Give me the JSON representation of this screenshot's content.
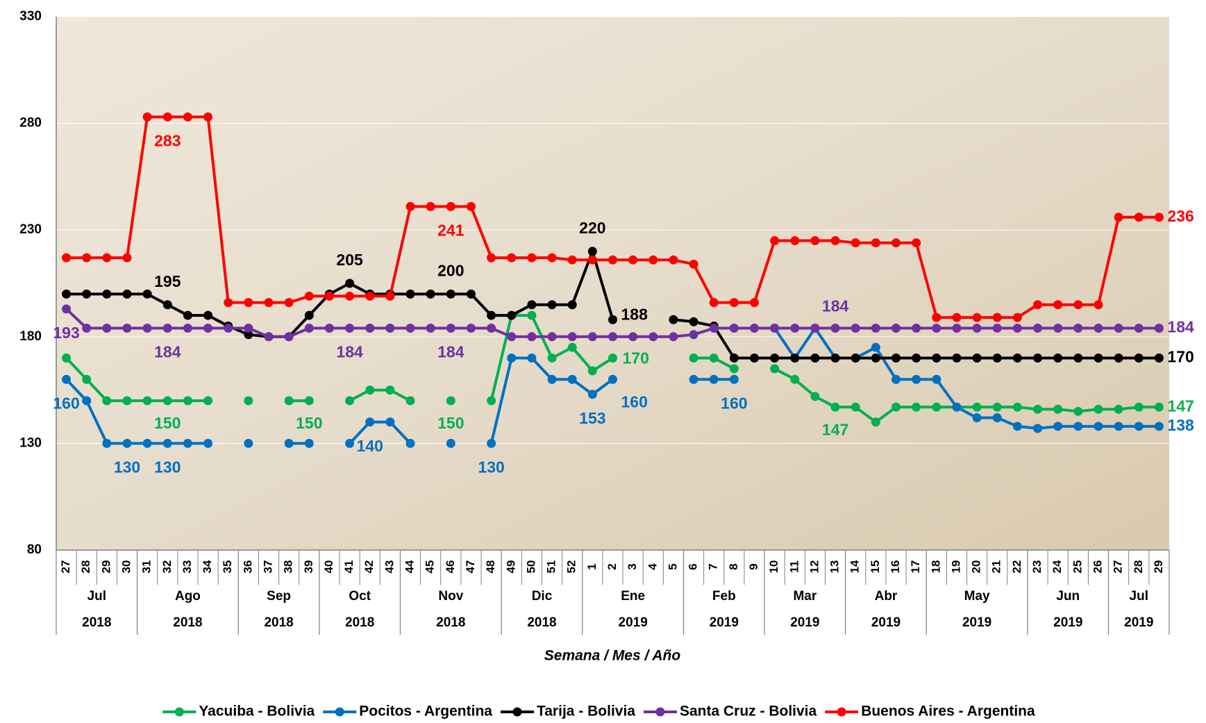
{
  "chart_data": {
    "type": "line",
    "x_label": "Semana / Mes / Año",
    "groups": [
      {
        "month": "Jul",
        "year": "2018",
        "weeks": [
          "27",
          "28",
          "29",
          "30"
        ]
      },
      {
        "month": "Ago",
        "year": "2018",
        "weeks": [
          "31",
          "32",
          "33",
          "34",
          "35"
        ]
      },
      {
        "month": "Sep",
        "year": "2018",
        "weeks": [
          "36",
          "37",
          "38",
          "39"
        ]
      },
      {
        "month": "Oct",
        "year": "2018",
        "weeks": [
          "40",
          "41",
          "42",
          "43"
        ]
      },
      {
        "month": "Nov",
        "year": "2018",
        "weeks": [
          "44",
          "45",
          "46",
          "47",
          "48"
        ]
      },
      {
        "month": "Dic",
        "year": "2018",
        "weeks": [
          "49",
          "50",
          "51",
          "52"
        ]
      },
      {
        "month": "Ene",
        "year": "2019",
        "weeks": [
          "1",
          "2",
          "3",
          "4",
          "5"
        ]
      },
      {
        "month": "Feb",
        "year": "2019",
        "weeks": [
          "6",
          "7",
          "8",
          "9"
        ]
      },
      {
        "month": "Mar",
        "year": "2019",
        "weeks": [
          "10",
          "11",
          "12",
          "13"
        ]
      },
      {
        "month": "Abr",
        "year": "2019",
        "weeks": [
          "14",
          "15",
          "16",
          "17"
        ]
      },
      {
        "month": "May",
        "year": "2019",
        "weeks": [
          "18",
          "19",
          "20",
          "21",
          "22"
        ]
      },
      {
        "month": "Jun",
        "year": "2019",
        "weeks": [
          "23",
          "24",
          "25",
          "26"
        ]
      },
      {
        "month": "Jul",
        "year": "2019",
        "weeks": [
          "27",
          "28",
          "29"
        ]
      }
    ],
    "ylim": [
      80,
      330
    ],
    "yticks": [
      80,
      130,
      180,
      230,
      280,
      330
    ],
    "grid": true,
    "legend": "bottom",
    "series": [
      {
        "name": "Yacuiba - Bolivia",
        "color": "#00b050",
        "values": [
          170,
          160,
          150,
          150,
          150,
          150,
          150,
          150,
          null,
          150,
          null,
          150,
          150,
          null,
          150,
          155,
          155,
          150,
          null,
          150,
          null,
          150,
          190,
          190,
          170,
          175,
          164,
          170,
          null,
          null,
          null,
          170,
          170,
          165,
          null,
          165,
          160,
          152,
          147,
          147,
          140,
          147,
          147,
          147,
          147,
          147,
          147,
          147,
          146,
          146,
          145,
          146,
          146,
          147,
          147
        ],
        "value_labels": [
          null,
          null,
          null,
          null,
          null,
          "150",
          null,
          null,
          null,
          null,
          null,
          null,
          "150",
          null,
          null,
          null,
          null,
          null,
          null,
          "150",
          null,
          null,
          null,
          null,
          null,
          null,
          null,
          "170",
          null,
          null,
          null,
          null,
          null,
          null,
          null,
          null,
          null,
          null,
          "147",
          null,
          null,
          null,
          null,
          null,
          null,
          null,
          null,
          null,
          null,
          null,
          null,
          null,
          null,
          null,
          "147"
        ]
      },
      {
        "name": "Pocitos - Argentina",
        "color": "#0070c0",
        "values": [
          160,
          150,
          130,
          130,
          130,
          130,
          130,
          130,
          null,
          130,
          null,
          130,
          130,
          null,
          130,
          140,
          140,
          130,
          null,
          130,
          null,
          130,
          170,
          170,
          160,
          160,
          153,
          160,
          null,
          null,
          null,
          160,
          160,
          160,
          null,
          184,
          170,
          184,
          170,
          170,
          175,
          160,
          160,
          160,
          147,
          142,
          142,
          138,
          137,
          138,
          138,
          138,
          138,
          138,
          138
        ],
        "value_labels": [
          "160",
          null,
          null,
          "130",
          null,
          "130",
          null,
          null,
          null,
          null,
          null,
          null,
          null,
          null,
          null,
          "140",
          null,
          null,
          null,
          null,
          null,
          "130",
          null,
          null,
          null,
          null,
          "153",
          "160",
          null,
          null,
          null,
          null,
          null,
          "160",
          null,
          null,
          null,
          null,
          null,
          null,
          null,
          null,
          null,
          null,
          null,
          null,
          null,
          null,
          null,
          null,
          null,
          null,
          null,
          null,
          "138"
        ]
      },
      {
        "name": "Tarija - Bolivia",
        "color": "#000000",
        "values": [
          200,
          200,
          200,
          200,
          200,
          195,
          190,
          190,
          185,
          181,
          180,
          180,
          190,
          200,
          205,
          200,
          200,
          200,
          200,
          200,
          200,
          190,
          190,
          195,
          195,
          195,
          220,
          188,
          null,
          null,
          188,
          187,
          185,
          170,
          170,
          170,
          170,
          170,
          170,
          170,
          170,
          170,
          170,
          170,
          170,
          170,
          170,
          170,
          170,
          170,
          170,
          170,
          170,
          170,
          170
        ],
        "value_labels": [
          null,
          null,
          null,
          null,
          null,
          "195",
          null,
          null,
          null,
          null,
          null,
          null,
          null,
          null,
          "205",
          null,
          null,
          null,
          null,
          "200",
          null,
          null,
          null,
          null,
          null,
          null,
          "220",
          "188",
          null,
          null,
          null,
          null,
          null,
          null,
          null,
          null,
          null,
          null,
          null,
          null,
          null,
          null,
          null,
          null,
          null,
          null,
          null,
          null,
          null,
          null,
          null,
          null,
          null,
          null,
          "170"
        ]
      },
      {
        "name": "Santa Cruz - Bolivia",
        "color": "#7030a0",
        "values": [
          193,
          184,
          184,
          184,
          184,
          184,
          184,
          184,
          184,
          184,
          180,
          180,
          184,
          184,
          184,
          184,
          184,
          184,
          184,
          184,
          184,
          184,
          180,
          180,
          180,
          180,
          180,
          180,
          180,
          180,
          180,
          181,
          184,
          184,
          184,
          184,
          184,
          184,
          184,
          184,
          184,
          184,
          184,
          184,
          184,
          184,
          184,
          184,
          184,
          184,
          184,
          184,
          184,
          184,
          184
        ],
        "value_labels": [
          "193",
          null,
          null,
          null,
          null,
          "184",
          null,
          null,
          null,
          null,
          null,
          null,
          null,
          null,
          "184",
          null,
          null,
          null,
          null,
          "184",
          null,
          null,
          null,
          null,
          null,
          null,
          null,
          null,
          null,
          null,
          null,
          null,
          null,
          null,
          null,
          null,
          null,
          null,
          "184",
          null,
          null,
          null,
          null,
          null,
          null,
          null,
          null,
          null,
          null,
          null,
          null,
          null,
          null,
          null,
          "184"
        ]
      },
      {
        "name": "Buenos Aires - Argentina",
        "color": "#ff0000",
        "values": [
          217,
          217,
          217,
          217,
          283,
          283,
          283,
          283,
          196,
          196,
          196,
          196,
          199,
          199,
          199,
          199,
          199,
          241,
          241,
          241,
          241,
          217,
          217,
          217,
          217,
          216,
          216,
          216,
          216,
          216,
          216,
          214,
          196,
          196,
          196,
          225,
          225,
          225,
          225,
          224,
          224,
          224,
          224,
          189,
          189,
          189,
          189,
          189,
          195,
          195,
          195,
          195,
          236,
          236,
          236
        ],
        "value_labels": [
          null,
          null,
          null,
          null,
          null,
          "283",
          null,
          null,
          null,
          null,
          null,
          null,
          null,
          null,
          null,
          null,
          null,
          null,
          null,
          "241",
          null,
          null,
          null,
          null,
          null,
          null,
          null,
          null,
          null,
          null,
          null,
          null,
          null,
          null,
          null,
          null,
          null,
          null,
          null,
          null,
          null,
          null,
          null,
          null,
          null,
          null,
          null,
          null,
          null,
          null,
          null,
          null,
          null,
          null,
          "236"
        ]
      }
    ]
  }
}
